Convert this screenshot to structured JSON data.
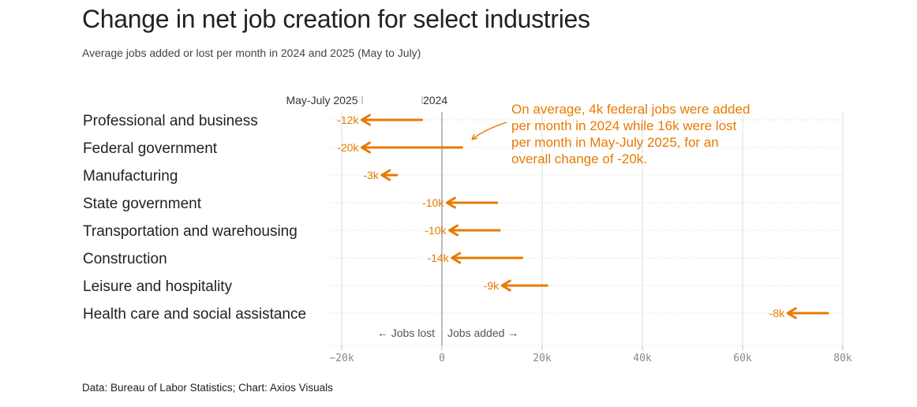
{
  "header": {
    "title": "Change in net job creation for select industries",
    "subtitle": "Average jobs added or lost per month in 2024 and 2025 (May to July)"
  },
  "footer": {
    "source": "Data: Bureau of Labor Statistics; Chart: Axios Visuals"
  },
  "colors": {
    "accent": "#e87a00",
    "grid": "#cccccc",
    "zero_line": "#bbbbbb",
    "text": "#222222"
  },
  "chart_data": {
    "type": "arrow",
    "title": "Change in net job creation for select industries",
    "subtitle": "Average jobs added or lost per month in 2024 and 2025 (May to July)",
    "xlim": [
      -22,
      82
    ],
    "xticks": [
      -20,
      0,
      20,
      40,
      60,
      80
    ],
    "xtick_labels": [
      "−20k",
      "0",
      "20k",
      "40k",
      "60k",
      "80k"
    ],
    "legend": {
      "start_label": "2024",
      "end_label": "May-July 2025"
    },
    "direction_labels": {
      "left": "← Jobs lost",
      "right": "Jobs added →"
    },
    "categories": [
      "Professional and business",
      "Federal government",
      "Manufacturing",
      "State government",
      "Transportation and warehousing",
      "Construction",
      "Leisure and hospitality",
      "Health care and social assistance"
    ],
    "series": [
      {
        "name": "2024",
        "values": [
          -4,
          4,
          -9,
          11,
          11.5,
          16,
          21,
          77
        ]
      },
      {
        "name": "May-July 2025",
        "values": [
          -16,
          -16,
          -12,
          1,
          1.5,
          2,
          12,
          69
        ]
      }
    ],
    "change_labels": [
      "-12k",
      "-20k",
      "-3k",
      "-10k",
      "-10k",
      "-14k",
      "-9k",
      "-8k"
    ],
    "annotation": {
      "target": "Federal government",
      "lines": [
        "On average, 4k federal jobs were added",
        "per month in 2024 while 16k were lost",
        "per month in May-July 2025, for an",
        "overall change of -20k."
      ]
    }
  }
}
